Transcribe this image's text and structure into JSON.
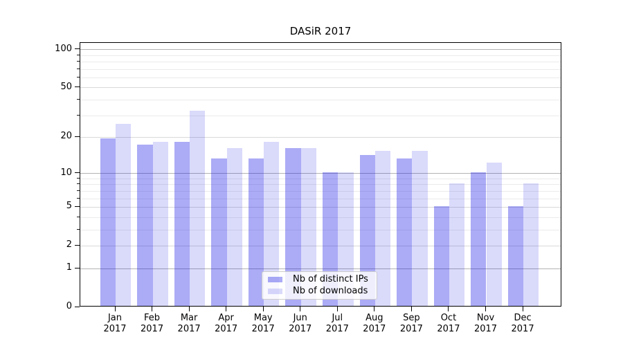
{
  "chart_data": {
    "type": "bar",
    "title": "DASiR 2017",
    "categories": [
      "Jan",
      "Feb",
      "Mar",
      "Apr",
      "May",
      "Jun",
      "Jul",
      "Aug",
      "Sep",
      "Oct",
      "Nov",
      "Dec"
    ],
    "xtick_second_line": "2017",
    "series": [
      {
        "name": "Nb of distinct IPs",
        "color": "rgba(10,10,230,0.34)",
        "color_hex_on_white": "#acacf6",
        "values": [
          19,
          17,
          18,
          13,
          13,
          16,
          10,
          14,
          13,
          5,
          10,
          5
        ]
      },
      {
        "name": "Nb of downloads",
        "color": "rgba(10,10,230,0.15)",
        "color_hex_on_white": "#dbdbf9",
        "values": [
          25,
          18,
          32,
          16,
          18,
          16,
          10,
          15,
          15,
          8,
          12,
          8
        ]
      }
    ],
    "xlabel": "",
    "ylabel": "",
    "yscale": "symlog(log10(value+1))",
    "ytick_values": [
      0,
      1,
      2,
      5,
      10,
      20,
      50,
      100
    ],
    "ylim": [
      0,
      113
    ],
    "grid": "horizontal",
    "gridlines": {
      "major": [
        1,
        10,
        100
      ],
      "labeled_minor": [
        2,
        5,
        20,
        50
      ],
      "minor": [
        3,
        4,
        6,
        7,
        8,
        9,
        30,
        40,
        60,
        70,
        80,
        90
      ],
      "major_color": "#b3b3b3",
      "labeled_minor_color": "#d9d9d9",
      "minor_color": "#ebebeb"
    },
    "legend": {
      "position": "lower-center-inside",
      "entries": [
        "Nb of distinct IPs",
        "Nb of downloads"
      ],
      "border_color": "#cccccc",
      "background": "rgba(255,255,255,0.8)"
    },
    "axis_color": "#000000",
    "background_color": "#ffffff"
  }
}
